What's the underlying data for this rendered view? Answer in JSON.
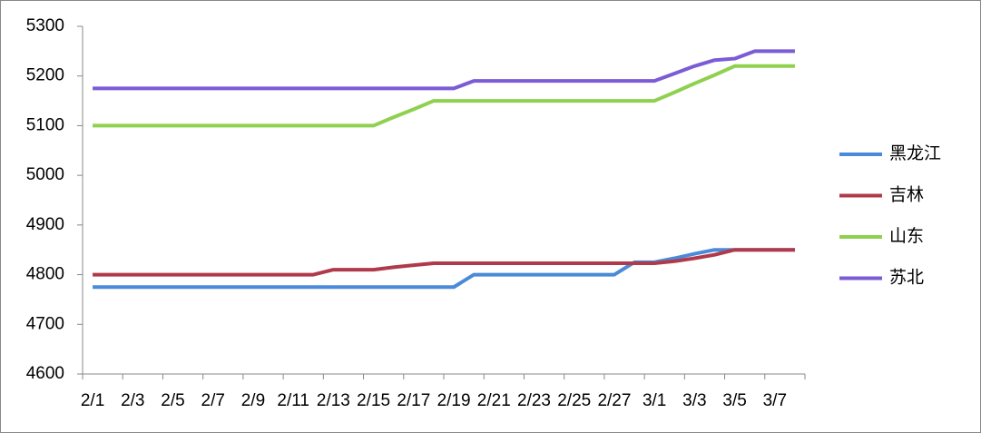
{
  "chart_data": {
    "type": "line",
    "categories": [
      "2/1",
      null,
      "2/3",
      null,
      "2/5",
      null,
      "2/7",
      null,
      "2/9",
      null,
      "2/11",
      null,
      "2/13",
      null,
      "2/15",
      null,
      "2/17",
      null,
      "2/19",
      null,
      "2/21",
      null,
      "2/23",
      null,
      "2/25",
      null,
      "2/27",
      null,
      "3/1",
      null,
      "3/3",
      null,
      "3/5",
      null,
      "3/7",
      null
    ],
    "series": [
      {
        "name": "黑龙江",
        "color": "#4a8ad8",
        "values": [
          4775,
          4775,
          4775,
          4775,
          4775,
          4775,
          4775,
          4775,
          4775,
          4775,
          4775,
          4775,
          4775,
          4775,
          4775,
          4775,
          4775,
          4775,
          4775,
          4800,
          4800,
          4800,
          4800,
          4800,
          4800,
          4800,
          4800,
          4825,
          4825,
          4833,
          4842,
          4850,
          4850,
          4850,
          4850,
          4850
        ]
      },
      {
        "name": "吉林",
        "color": "#b03a4a",
        "values": [
          4800,
          4800,
          4800,
          4800,
          4800,
          4800,
          4800,
          4800,
          4800,
          4800,
          4800,
          4800,
          4810,
          4810,
          4810,
          4815,
          4819,
          4823,
          4823,
          4823,
          4823,
          4823,
          4823,
          4823,
          4823,
          4823,
          4823,
          4823,
          4823,
          4827,
          4833,
          4840,
          4850,
          4850,
          4850,
          4850
        ]
      },
      {
        "name": "山东",
        "color": "#8fd14f",
        "values": [
          5100,
          5100,
          5100,
          5100,
          5100,
          5100,
          5100,
          5100,
          5100,
          5100,
          5100,
          5100,
          5100,
          5100,
          5100,
          5117,
          5133,
          5150,
          5150,
          5150,
          5150,
          5150,
          5150,
          5150,
          5150,
          5150,
          5150,
          5150,
          5150,
          5167,
          5185,
          5202,
          5220,
          5220,
          5220,
          5220
        ]
      },
      {
        "name": "苏北",
        "color": "#7b5bd6",
        "values": [
          5175,
          5175,
          5175,
          5175,
          5175,
          5175,
          5175,
          5175,
          5175,
          5175,
          5175,
          5175,
          5175,
          5175,
          5175,
          5175,
          5175,
          5175,
          5175,
          5190,
          5190,
          5190,
          5190,
          5190,
          5190,
          5190,
          5190,
          5190,
          5190,
          5205,
          5220,
          5232,
          5235,
          5250,
          5250,
          5250
        ]
      }
    ],
    "ylim": [
      4600,
      5300
    ],
    "yticks": [
      4600,
      4700,
      4800,
      4900,
      5000,
      5100,
      5200,
      5300
    ],
    "grid": false,
    "legend": "right"
  }
}
